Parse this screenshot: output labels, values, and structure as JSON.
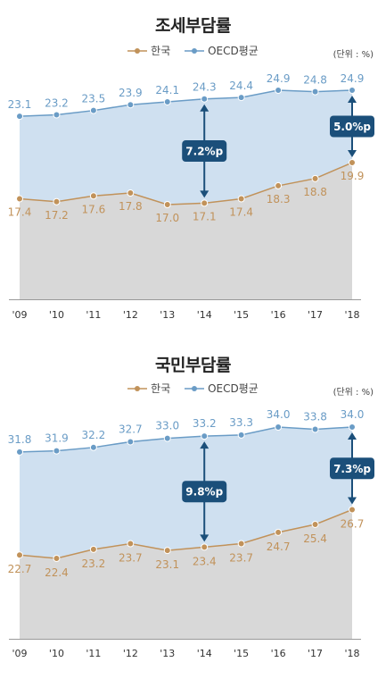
{
  "unit": "(단위 : %)",
  "legend_korea": "한국",
  "legend_oecd": "OECD평균",
  "colors": {
    "korea": "#c1925a",
    "oecd": "#6a9cc6",
    "oecd_fill": "#cfe0f0",
    "korea_fill": "#d8d8d8",
    "badge": "#1b4f7a"
  },
  "chart_data": [
    {
      "type": "area",
      "title": "조세부담률",
      "categories": [
        "'09",
        "'10",
        "'11",
        "'12",
        "'13",
        "'14",
        "'15",
        "'16",
        "'17",
        "'18"
      ],
      "series": [
        {
          "name": "한국",
          "values": [
            17.4,
            17.2,
            17.6,
            17.8,
            17.0,
            17.1,
            17.4,
            18.3,
            18.8,
            19.9
          ]
        },
        {
          "name": "OECD평균",
          "values": [
            23.1,
            23.2,
            23.5,
            23.9,
            24.1,
            24.3,
            24.4,
            24.9,
            24.8,
            24.9
          ]
        }
      ],
      "annotations": [
        {
          "category": "'14",
          "text": "7.2%p"
        },
        {
          "category": "'18",
          "text": "5.0%p"
        }
      ]
    },
    {
      "type": "area",
      "title": "국민부담률",
      "categories": [
        "'09",
        "'10",
        "'11",
        "'12",
        "'13",
        "'14",
        "'15",
        "'16",
        "'17",
        "'18"
      ],
      "series": [
        {
          "name": "한국",
          "values": [
            22.7,
            22.4,
            23.2,
            23.7,
            23.1,
            23.4,
            23.7,
            24.7,
            25.4,
            26.7
          ]
        },
        {
          "name": "OECD평균",
          "values": [
            31.8,
            31.9,
            32.2,
            32.7,
            33.0,
            33.2,
            33.3,
            34.0,
            33.8,
            34.0
          ]
        }
      ],
      "annotations": [
        {
          "category": "'14",
          "text": "9.8%p"
        },
        {
          "category": "'18",
          "text": "7.3%p"
        }
      ]
    }
  ]
}
